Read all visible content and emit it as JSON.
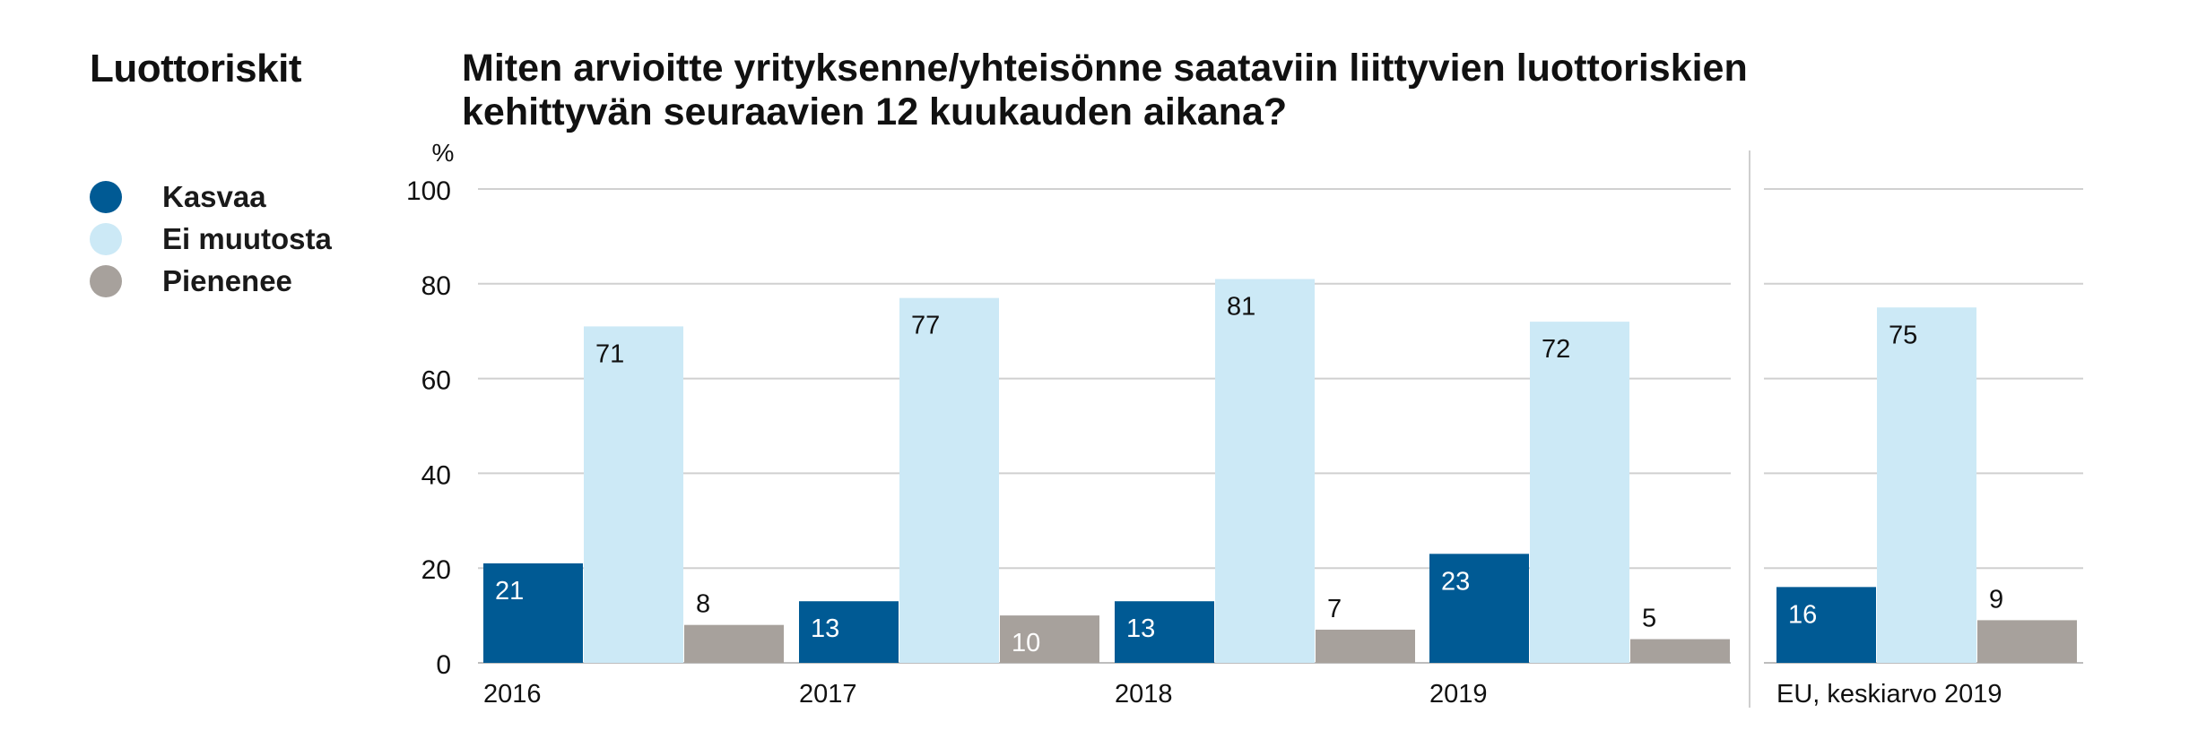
{
  "section_title": "Luottoriskit",
  "title_lines": [
    "Miten arvioitte yrityksenne/yhteisönne saataviin liittyvien luottoriskien",
    "kehittyvän seuraavien 12 kuukauden aikana?"
  ],
  "colors": {
    "Kasvaa": "#005a94",
    "Ei muutosta": "#cce9f6",
    "Pienenee": "#a7a19c",
    "grid": "#d0d0d0",
    "text": "#111111"
  },
  "chart_data": {
    "type": "bar",
    "title": "Miten arvioitte yrityksenne/yhteisönne saataviin liittyvien luottoriskien kehittyvän seuraavien 12 kuukauden aikana?",
    "ylabel": "%",
    "ylim": [
      0,
      100
    ],
    "yticks": [
      0,
      20,
      40,
      60,
      80,
      100
    ],
    "grid": true,
    "legend_position": "left",
    "categories": [
      "2016",
      "2017",
      "2018",
      "2019",
      "EU, keskiarvo 2019"
    ],
    "series": [
      {
        "name": "Kasvaa",
        "values": [
          21,
          13,
          13,
          23,
          16
        ]
      },
      {
        "name": "Ei muutosta",
        "values": [
          71,
          77,
          81,
          72,
          75
        ]
      },
      {
        "name": "Pienenee",
        "values": [
          8,
          10,
          7,
          5,
          9
        ]
      }
    ],
    "panels": [
      {
        "categories": [
          "2016",
          "2017",
          "2018",
          "2019"
        ]
      },
      {
        "categories": [
          "EU, keskiarvo 2019"
        ]
      }
    ]
  }
}
